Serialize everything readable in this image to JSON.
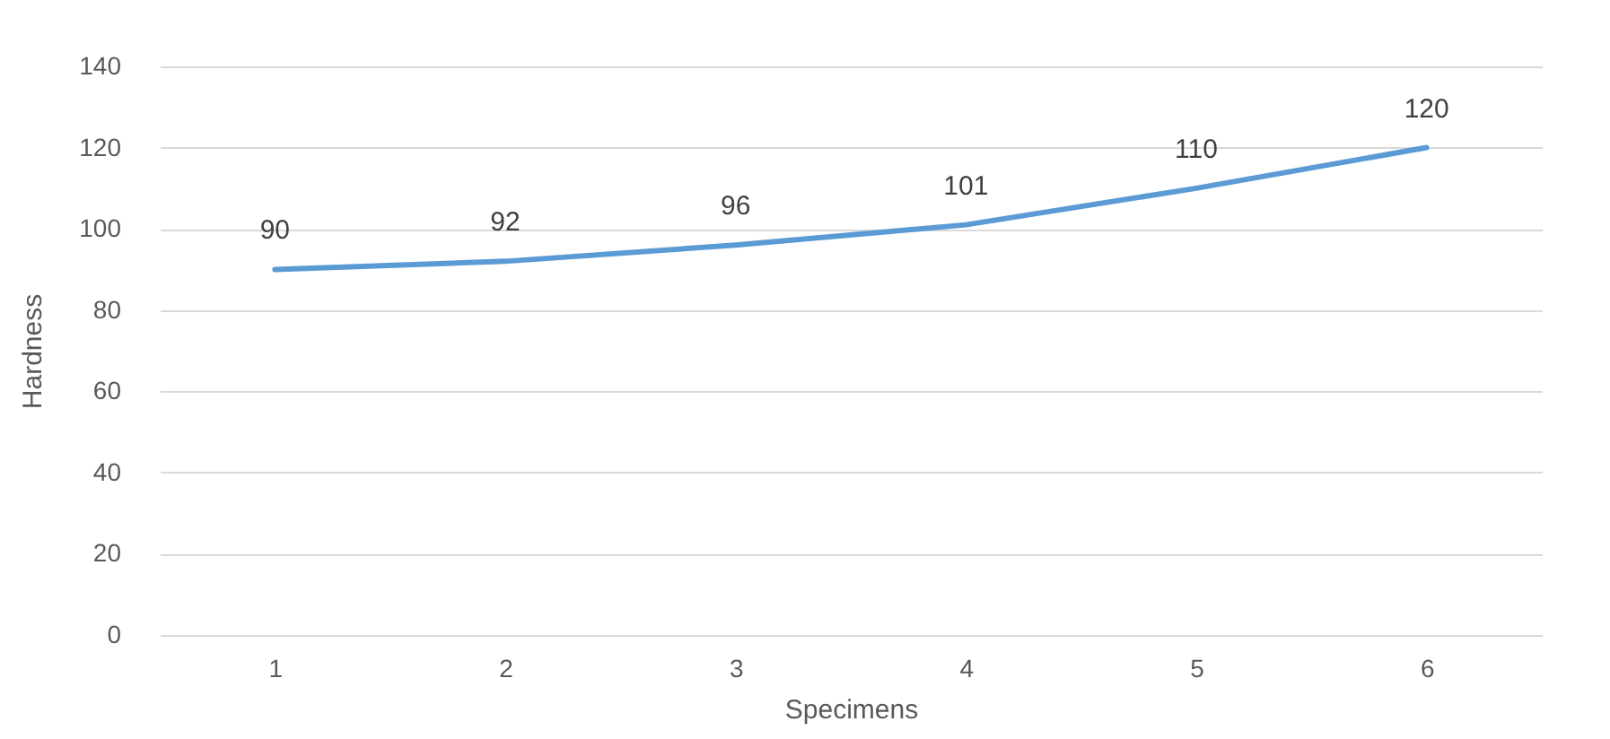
{
  "chart_data": {
    "type": "line",
    "xlabel": "Specimens",
    "ylabel": "Hardness",
    "categories": [
      "1",
      "2",
      "3",
      "4",
      "5",
      "6"
    ],
    "series": [
      {
        "color": "#5b9bd5",
        "values": [
          90,
          92,
          96,
          101,
          110,
          120
        ]
      }
    ],
    "ylim": [
      0,
      140
    ],
    "yticks": [
      0,
      20,
      40,
      60,
      80,
      100,
      120,
      140
    ],
    "grid": "y",
    "data_labels": true,
    "marker": "none",
    "line_style": "solid"
  }
}
